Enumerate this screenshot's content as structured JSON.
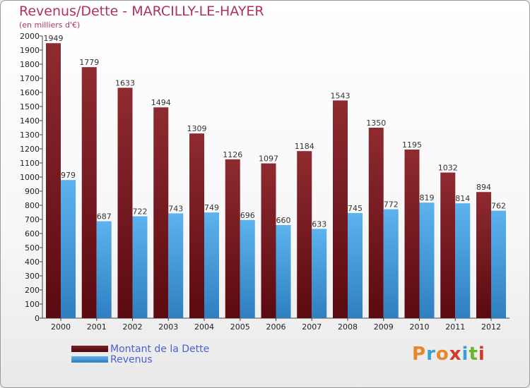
{
  "header": {
    "title": "Revenus/Dette - MARCILLY-LE-HAYER",
    "subtitle": "(en milliers d'€)"
  },
  "logo": {
    "text": "Proxiti",
    "colors": [
      "#e8862a",
      "#3a9fd8",
      "#e8862a",
      "#d43a2a",
      "#3a9fd8",
      "#6bb52e",
      "#d43a2a"
    ]
  },
  "colors": {
    "dette": "#7a1f24",
    "revenus": "#4aa3e0",
    "legend_text": "#4a5fd6",
    "title": "#b03060"
  },
  "chart_data": {
    "type": "bar",
    "categories": [
      "2000",
      "2001",
      "2002",
      "2003",
      "2004",
      "2005",
      "2006",
      "2007",
      "2008",
      "2009",
      "2010",
      "2011",
      "2012"
    ],
    "series": [
      {
        "name": "Montant de la Dette",
        "values": [
          1949,
          1779,
          1633,
          1494,
          1309,
          1126,
          1097,
          1184,
          1543,
          1350,
          1195,
          1032,
          894
        ]
      },
      {
        "name": "Revenus",
        "values": [
          979,
          687,
          722,
          743,
          749,
          696,
          660,
          633,
          745,
          772,
          819,
          814,
          762
        ]
      }
    ],
    "ylim": [
      0,
      2000
    ],
    "yticks": [
      0,
      100,
      200,
      300,
      400,
      500,
      600,
      700,
      800,
      900,
      1000,
      1100,
      1200,
      1300,
      1400,
      1500,
      1600,
      1700,
      1800,
      1900,
      2000
    ],
    "grid": false,
    "legend_position": "bottom-left"
  }
}
